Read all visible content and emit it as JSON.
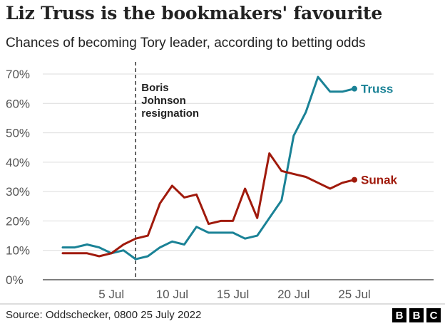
{
  "title": "Liz Truss is the bookmakers' favourite",
  "subtitle": "Chances of becoming Tory leader, according to betting odds",
  "source": "Source: Oddschecker, 0800 25 July 2022",
  "logo_letters": [
    "B",
    "B",
    "C"
  ],
  "chart_data": {
    "type": "line",
    "x_unit": "day of July 2022",
    "ylim": [
      0,
      70
    ],
    "yticks": [
      0,
      10,
      20,
      30,
      40,
      50,
      60,
      70
    ],
    "ytick_labels": [
      "0%",
      "10%",
      "20%",
      "30%",
      "40%",
      "50%",
      "60%",
      "70%"
    ],
    "xticks": [
      5,
      10,
      15,
      20,
      25
    ],
    "xtick_labels": [
      "5 Jul",
      "10 Jul",
      "15 Jul",
      "20 Jul",
      "25 Jul"
    ],
    "grid": true,
    "annotation": {
      "x": 7,
      "lines": [
        "Boris",
        "Johnson",
        "resignation"
      ]
    },
    "series": [
      {
        "name": "Truss",
        "color": "#1a8296",
        "x": [
          1,
          2,
          3,
          4,
          5,
          6,
          7,
          8,
          9,
          10,
          11,
          12,
          13,
          14,
          15,
          16,
          17,
          18,
          19,
          20,
          21,
          22,
          23,
          24,
          25
        ],
        "values": [
          11,
          11,
          12,
          11,
          9,
          10,
          7,
          8,
          11,
          13,
          12,
          18,
          16,
          16,
          16,
          14,
          15,
          21,
          27,
          49,
          57,
          69,
          64,
          64,
          65
        ]
      },
      {
        "name": "Sunak",
        "color": "#a01a0c",
        "x": [
          1,
          2,
          3,
          4,
          5,
          6,
          7,
          8,
          9,
          10,
          11,
          12,
          13,
          14,
          15,
          16,
          17,
          18,
          19,
          20,
          21,
          22,
          23,
          24,
          25
        ],
        "values": [
          9,
          9,
          9,
          8,
          9,
          12,
          14,
          15,
          26,
          32,
          28,
          29,
          19,
          20,
          20,
          31,
          21,
          43,
          37,
          36,
          35,
          33,
          31,
          33,
          34
        ]
      }
    ]
  }
}
